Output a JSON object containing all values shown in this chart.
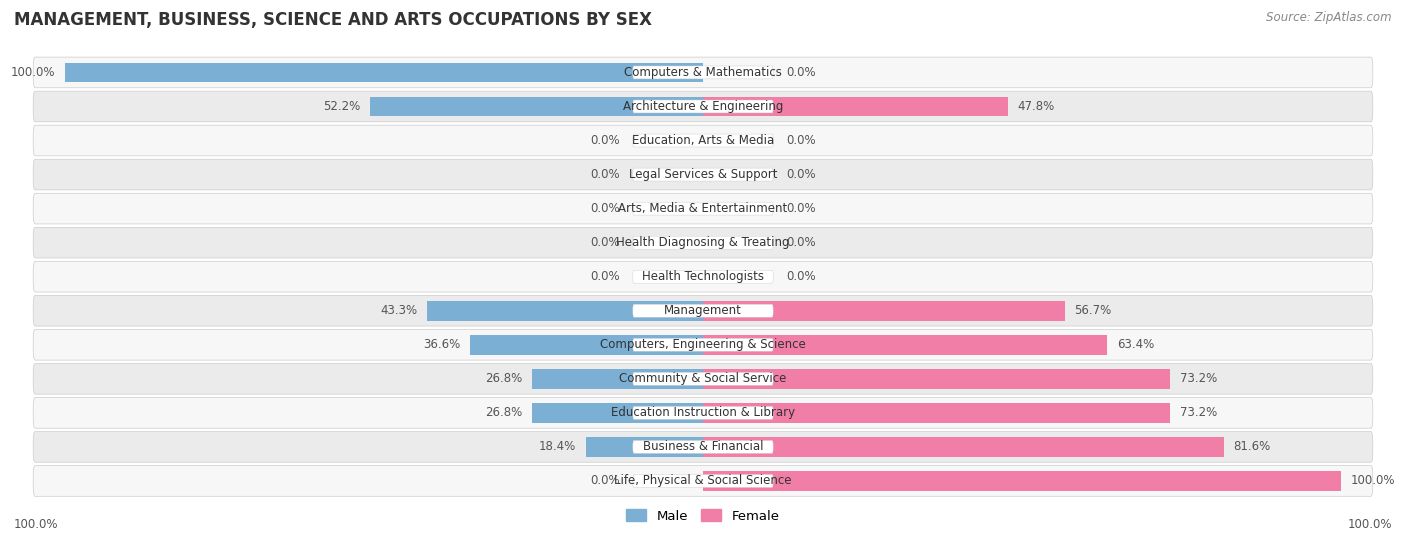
{
  "title": "MANAGEMENT, BUSINESS, SCIENCE AND ARTS OCCUPATIONS BY SEX",
  "source": "Source: ZipAtlas.com",
  "categories": [
    "Computers & Mathematics",
    "Architecture & Engineering",
    "Education, Arts & Media",
    "Legal Services & Support",
    "Arts, Media & Entertainment",
    "Health Diagnosing & Treating",
    "Health Technologists",
    "Management",
    "Computers, Engineering & Science",
    "Community & Social Service",
    "Education Instruction & Library",
    "Business & Financial",
    "Life, Physical & Social Science"
  ],
  "male": [
    100.0,
    52.2,
    0.0,
    0.0,
    0.0,
    0.0,
    0.0,
    43.3,
    36.6,
    26.8,
    26.8,
    18.4,
    0.0
  ],
  "female": [
    0.0,
    47.8,
    0.0,
    0.0,
    0.0,
    0.0,
    0.0,
    56.7,
    63.4,
    73.2,
    73.2,
    81.6,
    100.0
  ],
  "male_color": "#7bafd4",
  "female_color": "#f17ea6",
  "bar_height": 0.58,
  "row_bg_light": "#f0f0f0",
  "row_bg_dark": "#e0e0e0",
  "label_fontsize": 8.5,
  "title_fontsize": 12,
  "source_fontsize": 8.5,
  "xlim": 100
}
